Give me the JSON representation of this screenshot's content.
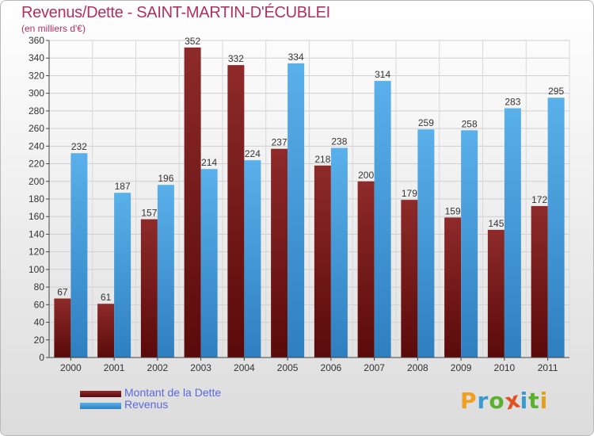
{
  "title": "Revenus/Dette - SAINT-MARTIN-D'ÉCUBLEI",
  "subtitle": "(en milliers d'€)",
  "colors": {
    "dette": "#7a1f1f",
    "revenus": "#4aa3e0",
    "title": "#b03060",
    "legend_text": "#5a6adc"
  },
  "logo": {
    "text": "Proxiti",
    "letters": [
      "P",
      "r",
      "o",
      "x",
      "i",
      "t",
      "i"
    ],
    "letter_colors": [
      "#f0a020",
      "#3a9ad0",
      "#5cb030",
      "#e05020",
      "#3a9ad0",
      "#5cb030",
      "#e0a020"
    ]
  },
  "chart_data": {
    "type": "bar",
    "categories": [
      "2000",
      "2001",
      "2002",
      "2003",
      "2004",
      "2005",
      "2006",
      "2007",
      "2008",
      "2009",
      "2010",
      "2011"
    ],
    "series": [
      {
        "name": "Montant de la Dette",
        "color": "#7a1f1f",
        "values": [
          67,
          61,
          157,
          352,
          332,
          237,
          218,
          200,
          179,
          159,
          145,
          172
        ]
      },
      {
        "name": "Revenus",
        "color": "#4aa3e0",
        "values": [
          232,
          187,
          196,
          214,
          224,
          334,
          238,
          314,
          259,
          258,
          283,
          295
        ]
      }
    ],
    "yticks": [
      0,
      20,
      40,
      60,
      80,
      100,
      120,
      140,
      160,
      180,
      200,
      220,
      240,
      260,
      280,
      300,
      320,
      340,
      360
    ],
    "ylim": [
      0,
      360
    ],
    "grid": true,
    "legend_position": "bottom-left"
  }
}
